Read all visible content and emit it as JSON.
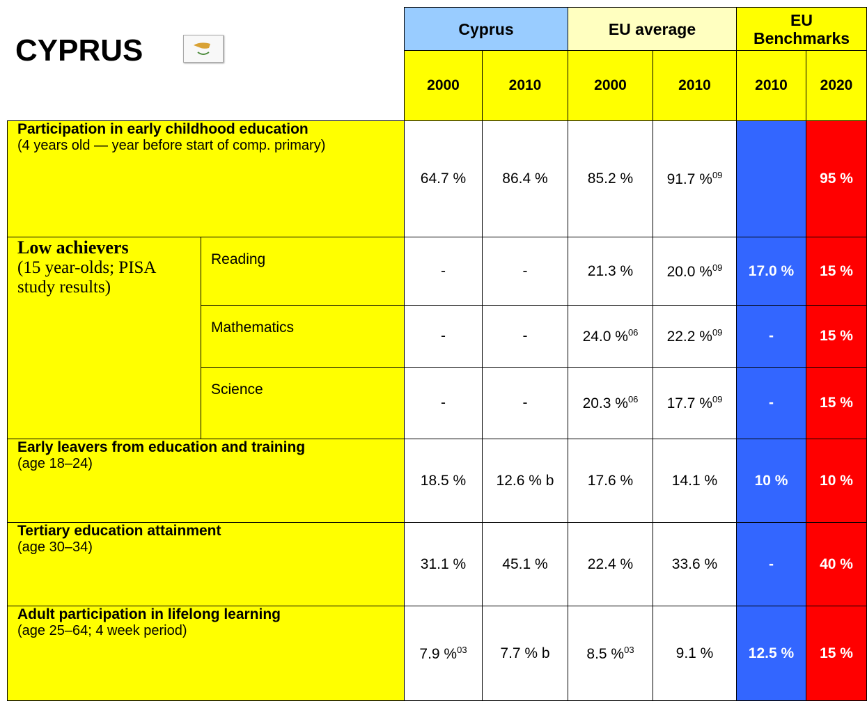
{
  "title": "CYPRUS",
  "groups": [
    {
      "label": "Cyprus"
    },
    {
      "label": "EU average"
    },
    {
      "label": "EU Benchmarks"
    }
  ],
  "years": [
    "2000",
    "2010",
    "2000",
    "2010",
    "2010",
    "2020"
  ],
  "low_achievers": {
    "label": "Low achievers",
    "sublabel": "(15 year-olds; PISA study results)"
  },
  "rows": [
    {
      "label": "Participation in early childhood education",
      "sublabel": "(4 years old — year before start of comp. primary)",
      "cells": [
        {
          "text": "64.7 %"
        },
        {
          "text": "86.4 %"
        },
        {
          "text": "85.2 %"
        },
        {
          "text": "91.7 %",
          "sup": "09"
        },
        null,
        {
          "text": "95 %"
        }
      ]
    },
    {
      "subject": "Reading",
      "cells": [
        {
          "text": "-"
        },
        {
          "text": "-"
        },
        {
          "text": "21.3 %"
        },
        {
          "text": "20.0 %",
          "sup": "09"
        },
        {
          "text": "17.0 %"
        },
        {
          "text": "15 %"
        }
      ]
    },
    {
      "subject": "Mathematics",
      "cells": [
        {
          "text": "-"
        },
        {
          "text": "-"
        },
        {
          "text": "24.0 %",
          "sup": "06"
        },
        {
          "text": "22.2 %",
          "sup": "09"
        },
        {
          "text": "-"
        },
        {
          "text": "15 %"
        }
      ]
    },
    {
      "subject": "Science",
      "cells": [
        {
          "text": "-"
        },
        {
          "text": "-"
        },
        {
          "text": "20.3 %",
          "sup": "06"
        },
        {
          "text": "17.7 %",
          "sup": "09"
        },
        {
          "text": "-"
        },
        {
          "text": "15 %"
        }
      ]
    },
    {
      "label": "Early leavers from education and training",
      "sublabel": "(age 18–24)",
      "cells": [
        {
          "text": "18.5 %"
        },
        {
          "text": "12.6 % b"
        },
        {
          "text": "17.6 %"
        },
        {
          "text": "14.1 %"
        },
        {
          "text": "10 %"
        },
        {
          "text": "10 %"
        }
      ]
    },
    {
      "label": "Tertiary education attainment",
      "sublabel": "(age 30–34)",
      "cells": [
        {
          "text": "31.1 %"
        },
        {
          "text": "45.1 %"
        },
        {
          "text": "22.4 %"
        },
        {
          "text": "33.6 %"
        },
        {
          "text": "-"
        },
        {
          "text": "40 %"
        }
      ]
    },
    {
      "label": "Adult participation in lifelong learning",
      "sublabel": "(age 25–64; 4 week period)",
      "cells": [
        {
          "text": "7.9 %",
          "sup": "03"
        },
        {
          "text": "7.7 % b"
        },
        {
          "text": "8.5 %",
          "sup": "03"
        },
        {
          "text": "9.1 %"
        },
        {
          "text": "12.5 %"
        },
        {
          "text": "15 %"
        }
      ]
    }
  ]
}
